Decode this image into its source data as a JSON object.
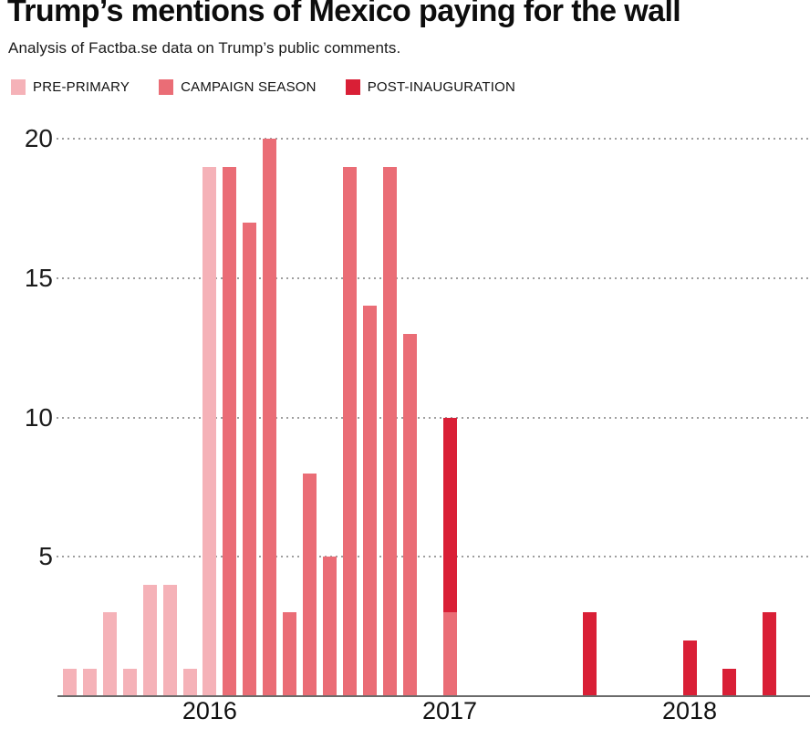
{
  "header": {
    "title": "Trump’s mentions of Mexico paying for the wall",
    "subtitle": "Analysis of Factba.se data on Trump’s public comments."
  },
  "legend": {
    "items": [
      {
        "key": "pre_primary",
        "label": "PRE-PRIMARY"
      },
      {
        "key": "campaign_season",
        "label": "CAMPAIGN SEASON"
      },
      {
        "key": "post_inauguration",
        "label": "POST-INAUGURATION"
      }
    ]
  },
  "chart_data": {
    "type": "bar",
    "subtype": "stacked-monthly",
    "title": "Trump’s mentions of Mexico paying for the wall",
    "xlabel": "",
    "ylabel": "",
    "ylim": [
      0,
      20
    ],
    "grid": "horizontal-dotted",
    "legend_position": "top",
    "colors": {
      "pre_primary": "#f5b2b8",
      "campaign_season": "#ea6d76",
      "post_inauguration": "#d91f36"
    },
    "y_axis": {
      "ticks": [
        5,
        10,
        15,
        20
      ]
    },
    "x_axis": {
      "ticks": [
        {
          "label": "2016",
          "month": "2016-01"
        },
        {
          "label": "2017",
          "month": "2017-01"
        },
        {
          "label": "2018",
          "month": "2018-01"
        }
      ]
    },
    "series_order": [
      "pre_primary",
      "campaign_season",
      "post_inauguration"
    ],
    "months": [
      {
        "month": "2015-06",
        "pre_primary": 1,
        "campaign_season": 0,
        "post_inauguration": 0
      },
      {
        "month": "2015-07",
        "pre_primary": 1,
        "campaign_season": 0,
        "post_inauguration": 0
      },
      {
        "month": "2015-08",
        "pre_primary": 3,
        "campaign_season": 0,
        "post_inauguration": 0
      },
      {
        "month": "2015-09",
        "pre_primary": 1,
        "campaign_season": 0,
        "post_inauguration": 0
      },
      {
        "month": "2015-10",
        "pre_primary": 4,
        "campaign_season": 0,
        "post_inauguration": 0
      },
      {
        "month": "2015-11",
        "pre_primary": 4,
        "campaign_season": 0,
        "post_inauguration": 0
      },
      {
        "month": "2015-12",
        "pre_primary": 1,
        "campaign_season": 0,
        "post_inauguration": 0
      },
      {
        "month": "2016-01",
        "pre_primary": 19,
        "campaign_season": 0,
        "post_inauguration": 0
      },
      {
        "month": "2016-02",
        "pre_primary": 0,
        "campaign_season": 19,
        "post_inauguration": 0
      },
      {
        "month": "2016-03",
        "pre_primary": 0,
        "campaign_season": 17,
        "post_inauguration": 0
      },
      {
        "month": "2016-04",
        "pre_primary": 0,
        "campaign_season": 20,
        "post_inauguration": 0
      },
      {
        "month": "2016-05",
        "pre_primary": 0,
        "campaign_season": 3,
        "post_inauguration": 0
      },
      {
        "month": "2016-06",
        "pre_primary": 0,
        "campaign_season": 8,
        "post_inauguration": 0
      },
      {
        "month": "2016-07",
        "pre_primary": 0,
        "campaign_season": 5,
        "post_inauguration": 0
      },
      {
        "month": "2016-08",
        "pre_primary": 0,
        "campaign_season": 19,
        "post_inauguration": 0
      },
      {
        "month": "2016-09",
        "pre_primary": 0,
        "campaign_season": 14,
        "post_inauguration": 0
      },
      {
        "month": "2016-10",
        "pre_primary": 0,
        "campaign_season": 19,
        "post_inauguration": 0
      },
      {
        "month": "2016-11",
        "pre_primary": 0,
        "campaign_season": 13,
        "post_inauguration": 0
      },
      {
        "month": "2016-12",
        "pre_primary": 0,
        "campaign_season": 0,
        "post_inauguration": 0
      },
      {
        "month": "2017-01",
        "pre_primary": 0,
        "campaign_season": 3,
        "post_inauguration": 7
      },
      {
        "month": "2017-02",
        "pre_primary": 0,
        "campaign_season": 0,
        "post_inauguration": 0
      },
      {
        "month": "2017-03",
        "pre_primary": 0,
        "campaign_season": 0,
        "post_inauguration": 0
      },
      {
        "month": "2017-04",
        "pre_primary": 0,
        "campaign_season": 0,
        "post_inauguration": 0
      },
      {
        "month": "2017-05",
        "pre_primary": 0,
        "campaign_season": 0,
        "post_inauguration": 0
      },
      {
        "month": "2017-06",
        "pre_primary": 0,
        "campaign_season": 0,
        "post_inauguration": 0
      },
      {
        "month": "2017-07",
        "pre_primary": 0,
        "campaign_season": 0,
        "post_inauguration": 0
      },
      {
        "month": "2017-08",
        "pre_primary": 0,
        "campaign_season": 0,
        "post_inauguration": 3
      },
      {
        "month": "2017-09",
        "pre_primary": 0,
        "campaign_season": 0,
        "post_inauguration": 0
      },
      {
        "month": "2017-10",
        "pre_primary": 0,
        "campaign_season": 0,
        "post_inauguration": 0
      },
      {
        "month": "2017-11",
        "pre_primary": 0,
        "campaign_season": 0,
        "post_inauguration": 0
      },
      {
        "month": "2017-12",
        "pre_primary": 0,
        "campaign_season": 0,
        "post_inauguration": 0
      },
      {
        "month": "2018-01",
        "pre_primary": 0,
        "campaign_season": 0,
        "post_inauguration": 2
      },
      {
        "month": "2018-02",
        "pre_primary": 0,
        "campaign_season": 0,
        "post_inauguration": 0
      },
      {
        "month": "2018-03",
        "pre_primary": 0,
        "campaign_season": 0,
        "post_inauguration": 1
      },
      {
        "month": "2018-04",
        "pre_primary": 0,
        "campaign_season": 0,
        "post_inauguration": 0
      },
      {
        "month": "2018-05",
        "pre_primary": 0,
        "campaign_season": 0,
        "post_inauguration": 3
      }
    ]
  }
}
